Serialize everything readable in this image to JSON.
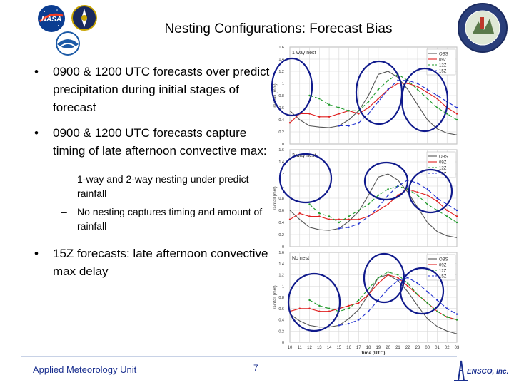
{
  "slide": {
    "title": "Nesting Configurations: Forecast Bias",
    "bullets": [
      {
        "text": "0900 & 1200 UTC forecasts over predict precipitation during initial stages of forecast",
        "sub": []
      },
      {
        "text": "0900 & 1200 UTC forecasts capture timing of late afternoon convective max:",
        "sub": [
          "1-way and 2-way nesting under predict rainfall",
          "No nesting captures timing and amount of rainfall"
        ]
      },
      {
        "text": "15Z forecasts: late afternoon convective max delay",
        "sub": []
      }
    ],
    "footer_left": "Applied Meteorology Unit",
    "page_number": "7",
    "ensco_text": "ENSCO, Inc."
  },
  "logos": [
    "nasa-logo",
    "space-wing-logo",
    "noaa-logo",
    "amu-patch-logo",
    "ensco-logo"
  ],
  "colors": {
    "obs": "#555555",
    "09z": "#e02020",
    "12z": "#1e9a2a",
    "15z": "#2030d0",
    "circle": "#101a8c"
  },
  "chart_data": [
    {
      "type": "line",
      "title": "1 way nest",
      "ylabel": "rainfall (mm)",
      "xlabel": "",
      "x": [
        "10",
        "11",
        "12",
        "13",
        "14",
        "15",
        "16",
        "17",
        "18",
        "19",
        "20",
        "21",
        "22",
        "23",
        "00",
        "01",
        "02",
        "03"
      ],
      "ylim": [
        0,
        1.6
      ],
      "yticks": [
        0,
        0.2,
        0.4,
        0.6,
        0.8,
        1,
        1.2,
        1.4,
        1.6
      ],
      "legend": "top-right",
      "series": [
        {
          "name": "OBS",
          "color": "#555555",
          "dash": "",
          "values": [
            0.55,
            0.4,
            0.3,
            0.28,
            0.27,
            0.3,
            0.4,
            0.55,
            0.8,
            1.15,
            1.2,
            1.1,
            0.9,
            0.65,
            0.4,
            0.25,
            0.18,
            0.15
          ]
        },
        {
          "name": "09Z",
          "color": "#e02020",
          "dash": "",
          "values": [
            0.35,
            0.5,
            0.5,
            0.45,
            0.45,
            0.5,
            0.55,
            0.5,
            0.6,
            0.75,
            0.9,
            1.0,
            1.0,
            0.95,
            0.85,
            0.75,
            0.6,
            0.5
          ]
        },
        {
          "name": "12Z",
          "color": "#1e9a2a",
          "dash": "5,3",
          "values": [
            null,
            null,
            0.8,
            0.75,
            0.65,
            0.6,
            0.55,
            0.55,
            0.7,
            0.9,
            1.05,
            1.15,
            1.05,
            0.9,
            0.75,
            0.6,
            0.5,
            0.4
          ]
        },
        {
          "name": "15Z",
          "color": "#2030d0",
          "dash": "6,3",
          "values": [
            null,
            null,
            null,
            null,
            null,
            0.3,
            0.3,
            0.35,
            0.5,
            0.7,
            0.9,
            1.05,
            1.05,
            1.0,
            0.9,
            0.8,
            0.7,
            0.6
          ]
        }
      ]
    },
    {
      "type": "line",
      "title": "2 way nest",
      "ylabel": "rainfall (mm)",
      "xlabel": "",
      "x": [
        "10",
        "11",
        "12",
        "13",
        "14",
        "15",
        "16",
        "17",
        "18",
        "19",
        "20",
        "21",
        "22",
        "23",
        "00",
        "01",
        "02",
        "03"
      ],
      "ylim": [
        0,
        1.6
      ],
      "yticks": [
        0,
        0.2,
        0.4,
        0.6,
        0.8,
        1,
        1.2,
        1.4,
        1.6
      ],
      "legend": "top-right",
      "series": [
        {
          "name": "OBS",
          "color": "#555555",
          "dash": "",
          "values": [
            0.6,
            0.45,
            0.32,
            0.28,
            0.27,
            0.3,
            0.42,
            0.58,
            0.85,
            1.15,
            1.2,
            1.1,
            0.9,
            0.65,
            0.4,
            0.25,
            0.18,
            0.15
          ]
        },
        {
          "name": "09Z",
          "color": "#e02020",
          "dash": "",
          "values": [
            0.45,
            0.55,
            0.5,
            0.5,
            0.45,
            0.45,
            0.45,
            0.45,
            0.5,
            0.6,
            0.7,
            0.85,
            0.95,
            0.9,
            0.85,
            0.75,
            0.6,
            0.5
          ]
        },
        {
          "name": "12Z",
          "color": "#1e9a2a",
          "dash": "5,3",
          "values": [
            null,
            null,
            0.7,
            0.55,
            0.5,
            0.4,
            0.5,
            0.6,
            0.7,
            0.85,
            0.95,
            1.0,
            0.95,
            0.85,
            0.7,
            0.6,
            0.5,
            0.4
          ]
        },
        {
          "name": "15Z",
          "color": "#2030d0",
          "dash": "6,3",
          "values": [
            null,
            null,
            null,
            null,
            null,
            0.3,
            0.32,
            0.38,
            0.5,
            0.65,
            0.85,
            1.0,
            1.1,
            1.05,
            0.95,
            0.8,
            0.7,
            0.6
          ]
        }
      ]
    },
    {
      "type": "line",
      "title": "No nest",
      "ylabel": "rainfall (mm)",
      "xlabel": "time (UTC)",
      "x": [
        "10",
        "11",
        "12",
        "13",
        "14",
        "15",
        "16",
        "17",
        "18",
        "19",
        "20",
        "21",
        "22",
        "23",
        "00",
        "01",
        "02",
        "03"
      ],
      "ylim": [
        0,
        1.6
      ],
      "yticks": [
        0,
        0.2,
        0.4,
        0.6,
        0.8,
        1,
        1.2,
        1.4,
        1.6
      ],
      "legend": "top-right",
      "series": [
        {
          "name": "OBS",
          "color": "#555555",
          "dash": "",
          "values": [
            0.5,
            0.38,
            0.3,
            0.27,
            0.27,
            0.3,
            0.42,
            0.58,
            0.85,
            1.15,
            1.2,
            1.1,
            0.9,
            0.65,
            0.42,
            0.28,
            0.2,
            0.15
          ]
        },
        {
          "name": "09Z",
          "color": "#e02020",
          "dash": "",
          "values": [
            0.55,
            0.6,
            0.6,
            0.55,
            0.55,
            0.6,
            0.65,
            0.7,
            0.85,
            1.05,
            1.2,
            1.15,
            1.0,
            0.85,
            0.7,
            0.55,
            0.45,
            0.4
          ]
        },
        {
          "name": "12Z",
          "color": "#1e9a2a",
          "dash": "5,3",
          "values": [
            null,
            null,
            0.75,
            0.65,
            0.6,
            0.55,
            0.6,
            0.75,
            0.95,
            1.15,
            1.25,
            1.2,
            1.05,
            0.85,
            0.7,
            0.55,
            0.45,
            0.4
          ]
        },
        {
          "name": "15Z",
          "color": "#2030d0",
          "dash": "6,3",
          "values": [
            null,
            null,
            null,
            null,
            null,
            0.3,
            0.33,
            0.4,
            0.55,
            0.75,
            0.95,
            1.1,
            1.15,
            1.05,
            0.9,
            0.75,
            0.6,
            0.5
          ]
        }
      ]
    }
  ]
}
